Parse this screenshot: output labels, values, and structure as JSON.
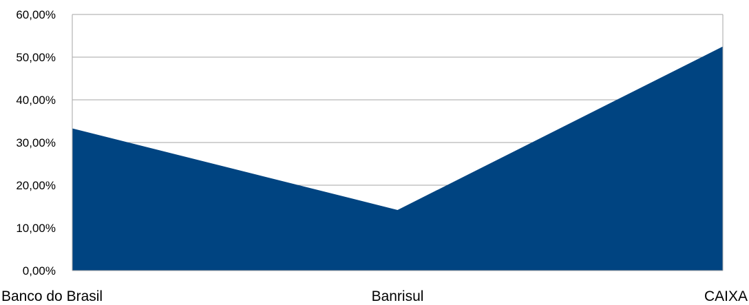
{
  "chart_data": {
    "type": "area",
    "categories": [
      "Banco do Brasil",
      "Banrisul",
      "CAIXA"
    ],
    "values": [
      0.333,
      0.142,
      0.525
    ],
    "ylim": [
      0,
      0.6
    ],
    "yticks": [
      0,
      0.1,
      0.2,
      0.3,
      0.4,
      0.5,
      0.6
    ],
    "ytick_labels": [
      "0,00%",
      "10,00%",
      "20,00%",
      "30,00%",
      "40,00%",
      "50,00%",
      "60,00%"
    ],
    "grid": true,
    "legend": "none",
    "colors": {
      "fill": "#004481",
      "grid": "#a6a6a6",
      "border": "#a6a6a6"
    }
  }
}
